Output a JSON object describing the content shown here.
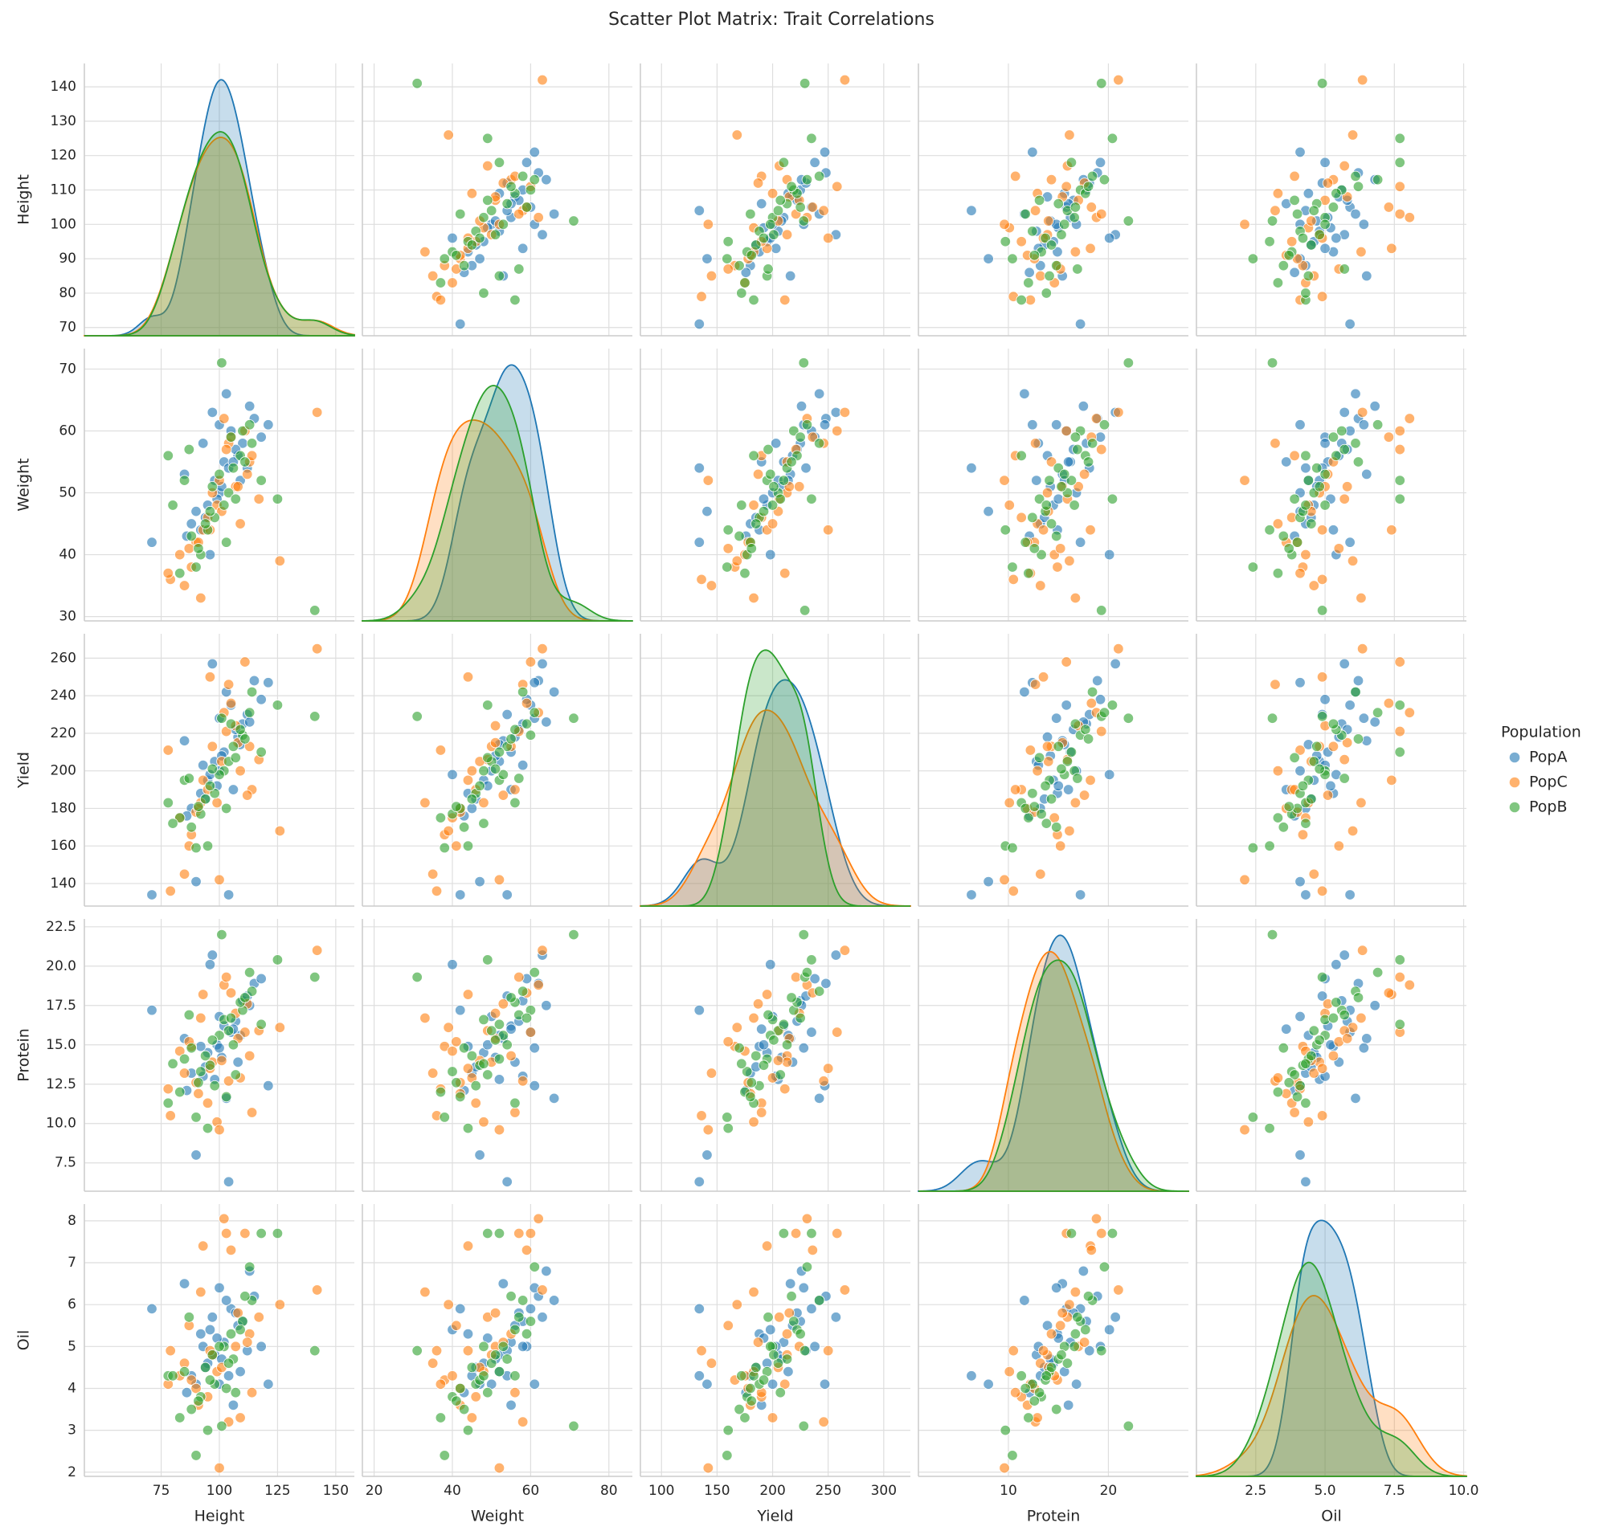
{
  "chart_data": {
    "type": "scatter_matrix",
    "title": "Scatter Plot Matrix: Trait Correlations",
    "legend_title": "Population",
    "grid": true,
    "variables": [
      {
        "name": "Height",
        "xlim": [
          42,
          158
        ],
        "ylim": [
          67.6,
          146.8
        ],
        "xticks": [
          75,
          100,
          125,
          150
        ],
        "yticks": [
          70,
          80,
          90,
          100,
          110,
          120,
          130,
          140
        ]
      },
      {
        "name": "Weight",
        "xlim": [
          17,
          86
        ],
        "ylim": [
          29.3,
          73.3
        ],
        "xticks": [
          20,
          40,
          60,
          80
        ],
        "yticks": [
          30,
          40,
          50,
          60,
          70
        ]
      },
      {
        "name": "Yield",
        "xlim": [
          81,
          324
        ],
        "ylim": [
          128,
          273
        ],
        "xticks": [
          100,
          150,
          200,
          250,
          300
        ],
        "yticks": [
          140,
          160,
          180,
          200,
          220,
          240,
          260
        ]
      },
      {
        "name": "Protein",
        "xlim": [
          1,
          28
        ],
        "ylim": [
          5.7,
          23
        ],
        "xticks": [
          10,
          20
        ],
        "yticks": [
          7.5,
          {
            "value": 10,
            "label": "10.0"
          },
          12.5,
          {
            "value": 15,
            "label": "15.0"
          },
          17.5,
          {
            "value": 20,
            "label": "20.0"
          },
          22.5
        ]
      },
      {
        "name": "Oil",
        "xlim": [
          0.36,
          10.1
        ],
        "ylim": [
          1.9,
          8.4
        ],
        "xticks": [
          2.5,
          {
            "value": 5,
            "label": "5.0"
          },
          7.5,
          {
            "value": 10,
            "label": "10.0"
          }
        ],
        "yticks": [
          2,
          3,
          4,
          5,
          6,
          7,
          8
        ]
      }
    ],
    "series": [
      {
        "name": "PopA",
        "color": "#1f77b4",
        "values": [
          [
            102,
            55,
            210,
            16.2,
            5.1
          ],
          [
            95,
            48,
            195,
            14.5,
            4.6
          ],
          [
            110,
            58,
            225,
            17.8,
            5.6
          ],
          [
            88,
            45,
            180,
            13.2,
            4.3
          ],
          [
            105,
            60,
            235,
            15.8,
            5.9
          ],
          [
            98,
            52,
            205,
            12.8,
            4.8
          ],
          [
            115,
            62,
            248,
            18.9,
            6.2
          ],
          [
            92,
            44,
            188,
            14.9,
            5.3
          ],
          [
            100,
            50,
            200,
            16.8,
            4.1
          ],
          [
            108,
            56,
            218,
            13.9,
            5.5
          ],
          [
            71,
            42,
            134,
            17.2,
            5.9
          ],
          [
            121,
            61,
            247,
            12.4,
            4.1
          ],
          [
            97,
            63,
            257,
            20.7,
            5.7
          ],
          [
            85,
            53,
            216,
            15.4,
            6.5
          ],
          [
            112,
            54,
            230,
            18.1,
            4.9
          ],
          [
            103,
            66,
            242,
            11.6,
            6.1
          ],
          [
            90,
            47,
            141,
            8.0,
            4.1
          ],
          [
            104,
            54,
            134,
            6.3,
            4.3
          ],
          [
            99,
            49,
            192,
            15.0,
            5.2
          ],
          [
            107,
            57,
            222,
            16.5,
            5.8
          ],
          [
            94,
            46,
            185,
            13.6,
            4.5
          ],
          [
            118,
            59,
            238,
            19.2,
            5.0
          ],
          [
            101,
            51,
            208,
            14.2,
            4.7
          ],
          [
            86,
            43,
            176,
            12.1,
            3.9
          ],
          [
            113,
            64,
            226,
            17.5,
            6.8
          ],
          [
            96,
            40,
            198,
            20.1,
            5.4
          ],
          [
            109,
            52,
            214,
            15.6,
            4.4
          ],
          [
            93,
            58,
            203,
            13.0,
            5.0
          ],
          [
            106,
            55,
            190,
            16.0,
            3.6
          ],
          [
            100,
            61,
            228,
            14.8,
            6.4
          ]
        ]
      },
      {
        "name": "PopC",
        "color": "#ff7f0e",
        "values": [
          [
            142,
            63,
            265,
            21.0,
            6.35
          ],
          [
            88,
            38,
            166,
            14.9,
            4.2
          ],
          [
            111,
            60,
            258,
            15.8,
            7.7
          ],
          [
            126,
            39,
            168,
            16.1,
            6.0
          ],
          [
            79,
            36,
            136,
            10.5,
            4.9
          ],
          [
            93,
            44,
            195,
            18.2,
            7.4
          ],
          [
            104,
            58,
            246,
            12.7,
            3.2
          ],
          [
            85,
            35,
            145,
            13.2,
            4.6
          ],
          [
            99,
            48,
            183,
            10.1,
            4.4
          ],
          [
            113,
            55,
            213,
            14.3,
            5.3
          ],
          [
            90,
            42,
            178,
            12.6,
            4.0
          ],
          [
            107,
            51,
            224,
            17.0,
            5.0
          ],
          [
            95,
            46,
            190,
            11.3,
            3.8
          ],
          [
            100,
            52,
            142,
            9.6,
            2.1
          ],
          [
            117,
            49,
            206,
            15.9,
            5.7
          ],
          [
            83,
            40,
            175,
            14.6,
            4.3
          ],
          [
            102,
            62,
            231,
            18.8,
            8.05
          ],
          [
            109,
            45,
            200,
            12.9,
            3.3
          ],
          [
            92,
            33,
            183,
            16.7,
            6.3
          ],
          [
            97,
            50,
            213,
            13.9,
            4.8
          ],
          [
            114,
            56,
            190,
            10.7,
            3.9
          ],
          [
            87,
            41,
            160,
            15.2,
            5.5
          ],
          [
            105,
            59,
            236,
            18.3,
            7.3
          ],
          [
            78,
            37,
            211,
            12.2,
            4.1
          ],
          [
            101,
            47,
            205,
            14.0,
            4.5
          ],
          [
            96,
            44,
            250,
            13.5,
            4.9
          ],
          [
            112,
            53,
            187,
            17.6,
            5.1
          ],
          [
            91,
            42,
            180,
            11.9,
            3.6
          ],
          [
            103,
            57,
            221,
            19.3,
            7.7
          ],
          [
            108,
            51,
            215,
            15.4,
            5.8
          ]
        ]
      },
      {
        "name": "PopB",
        "color": "#2ca02c",
        "values": [
          [
            141,
            31,
            229,
            19.3,
            4.9
          ],
          [
            101,
            71,
            228,
            22.0,
            3.1
          ],
          [
            125,
            49,
            235,
            20.4,
            7.7
          ],
          [
            78,
            56,
            183,
            11.3,
            4.3
          ],
          [
            95,
            44,
            160,
            9.7,
            3.0
          ],
          [
            110,
            60,
            219,
            17.2,
            5.6
          ],
          [
            85,
            52,
            195,
            14.1,
            4.4
          ],
          [
            102,
            48,
            200,
            16.6,
            5.0
          ],
          [
            92,
            40,
            177,
            13.3,
            3.8
          ],
          [
            106,
            54,
            213,
            15.0,
            4.7
          ],
          [
            98,
            46,
            188,
            12.4,
            4.1
          ],
          [
            114,
            58,
            242,
            18.4,
            6.1
          ],
          [
            88,
            43,
            170,
            14.8,
            3.5
          ],
          [
            104,
            50,
            205,
            15.9,
            4.6
          ],
          [
            90,
            38,
            159,
            10.4,
            2.4
          ],
          [
            109,
            56,
            222,
            17.7,
            5.4
          ],
          [
            96,
            47,
            192,
            13.7,
            4.2
          ],
          [
            118,
            52,
            210,
            16.3,
            7.7
          ],
          [
            83,
            37,
            175,
            12.0,
            3.3
          ],
          [
            100,
            53,
            198,
            15.6,
            5.0
          ],
          [
            113,
            61,
            231,
            19.6,
            6.9
          ],
          [
            94,
            45,
            185,
            14.3,
            4.5
          ],
          [
            107,
            49,
            207,
            13.1,
            3.9
          ],
          [
            87,
            57,
            196,
            16.9,
            5.7
          ],
          [
            103,
            42,
            180,
            11.7,
            4.0
          ],
          [
            111,
            55,
            217,
            18.0,
            6.2
          ],
          [
            80,
            48,
            172,
            13.8,
            4.3
          ],
          [
            97,
            51,
            201,
            15.3,
            4.8
          ],
          [
            105,
            59,
            225,
            16.7,
            5.3
          ],
          [
            91,
            41,
            181,
            12.6,
            3.7
          ]
        ]
      }
    ]
  }
}
